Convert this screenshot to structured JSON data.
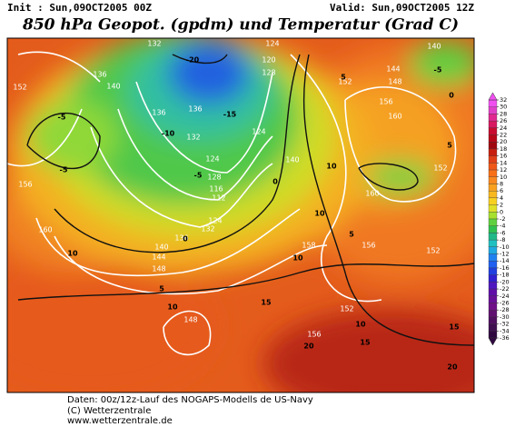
{
  "header": {
    "init": "Init : Sun,09OCT2005 00Z",
    "valid": "Valid: Sun,09OCT2005 12Z",
    "title": "850 hPa Geopot. (gpdm) und Temperatur (Grad C)"
  },
  "footer": [
    "Daten: 00z/12z-Lauf des NOGAPS-Modells de US-Navy",
    "(C) Wetterzentrale",
    "www.wetterzentrale.de"
  ],
  "colorbar": {
    "ticks": [
      32,
      30,
      28,
      26,
      24,
      22,
      20,
      18,
      16,
      14,
      12,
      10,
      8,
      6,
      4,
      2,
      0,
      -2,
      -4,
      -6,
      -8,
      -10,
      -12,
      -14,
      -16,
      -18,
      -20,
      -22,
      -24,
      -26,
      -28,
      -30,
      -32,
      -34,
      -36
    ],
    "colors": [
      "#f050f0",
      "#e040c8",
      "#e02890",
      "#d81860",
      "#c80c30",
      "#b80818",
      "#a00810",
      "#c82010",
      "#e04018",
      "#f05818",
      "#f87018",
      "#f88820",
      "#f8a020",
      "#f8b820",
      "#f8d020",
      "#e0e028",
      "#a8e030",
      "#60d040",
      "#30c050",
      "#20b888",
      "#20c0c0",
      "#20a8e0",
      "#2080f0",
      "#2060f0",
      "#2040e0",
      "#3020d0",
      "#5018c0",
      "#6010a8",
      "#681098",
      "#701088",
      "#601070",
      "#501060",
      "#401050",
      "#300840"
    ]
  },
  "contour_labels": {
    "height": [
      132,
      124,
      140,
      136,
      140,
      152,
      136,
      136,
      132,
      124,
      128,
      120,
      128,
      124,
      116,
      112,
      124,
      132,
      136,
      140,
      144,
      148,
      156,
      160,
      148,
      152,
      156,
      160,
      152,
      160,
      156,
      158,
      152,
      152,
      156,
      144,
      148,
      140
    ],
    "temperature": [
      -20,
      -15,
      -10,
      -5,
      -5,
      -5,
      -5,
      0,
      0,
      0,
      5,
      5,
      5,
      5,
      10,
      10,
      10,
      10,
      10,
      15,
      15,
      15,
      20,
      20,
      10
    ]
  }
}
